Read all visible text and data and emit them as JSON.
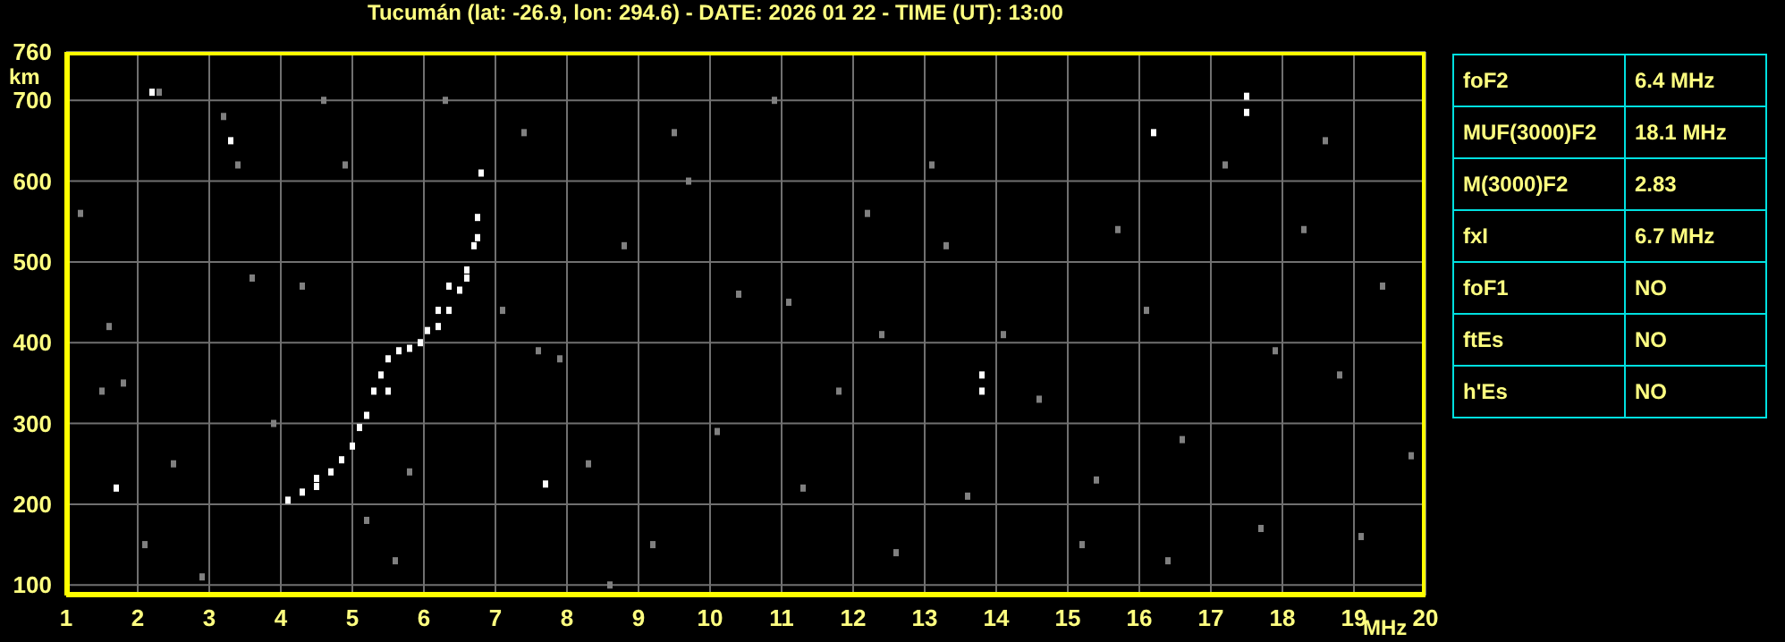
{
  "chart_data": [
    {
      "type": "scatter",
      "title": "Tucumán (lat: -26.9, lon: 294.6) - DATE: 2026 01 22 - TIME (UT): 13:00",
      "xlabel": "MHz",
      "ylabel": "km",
      "xlim": [
        1,
        20
      ],
      "xticks": [
        1,
        2,
        3,
        4,
        5,
        6,
        7,
        8,
        9,
        10,
        11,
        12,
        13,
        14,
        15,
        16,
        17,
        18,
        19,
        20
      ],
      "ylim": [
        87,
        760
      ],
      "yticks": [
        100,
        200,
        300,
        400,
        500,
        600,
        700,
        760
      ],
      "grid": true,
      "marker": "square",
      "series": [
        {
          "color": "#808080",
          "x": [
            1.2,
            1.6,
            1.8,
            2.1,
            2.5,
            2.9,
            3.2,
            3.6,
            3.9,
            4.3,
            4.9,
            5.2,
            5.8,
            6.3,
            7.1,
            7.4,
            7.9,
            8.3,
            8.8,
            9.2,
            9.7,
            10.1,
            10.4,
            10.9,
            11.3,
            11.8,
            12.2,
            12.6,
            13.1,
            13.6,
            14.1,
            14.6,
            15.2,
            15.7,
            16.1,
            16.6,
            17.2,
            17.7,
            18.3,
            18.8,
            19.4,
            19.8,
            2.3,
            3.4,
            5.6,
            7.6,
            9.5,
            11.1,
            13.3,
            15.4,
            17.9,
            19.1,
            1.5,
            4.6,
            8.6,
            12.4,
            16.4,
            18.6
          ],
          "values": [
            560,
            420,
            350,
            150,
            250,
            110,
            680,
            480,
            300,
            470,
            620,
            180,
            240,
            700,
            440,
            660,
            380,
            250,
            520,
            150,
            600,
            290,
            460,
            700,
            220,
            340,
            560,
            140,
            620,
            210,
            410,
            330,
            150,
            540,
            440,
            280,
            620,
            170,
            540,
            360,
            470,
            260,
            710,
            620,
            130,
            390,
            660,
            450,
            520,
            230,
            390,
            160,
            340,
            700,
            100,
            410,
            130,
            650
          ]
        },
        {
          "color": "#ffffff",
          "x": [
            4.1,
            4.3,
            4.5,
            4.7,
            4.85,
            5.0,
            5.1,
            5.2,
            5.3,
            5.4,
            5.5,
            5.65,
            5.8,
            5.95,
            6.05,
            6.2,
            6.35,
            6.5,
            6.6,
            6.7,
            6.75,
            4.5,
            5.5,
            6.2,
            6.35,
            6.6,
            6.75,
            6.8,
            13.8,
            13.8,
            17.5,
            17.5,
            16.2,
            3.3,
            1.7,
            2.2,
            7.7
          ],
          "values": [
            205,
            215,
            222,
            240,
            255,
            272,
            295,
            310,
            340,
            360,
            380,
            390,
            393,
            400,
            415,
            420,
            440,
            465,
            490,
            520,
            555,
            232,
            340,
            440,
            470,
            480,
            530,
            610,
            340,
            360,
            685,
            705,
            660,
            650,
            220,
            710,
            225
          ]
        }
      ]
    },
    {
      "type": "other",
      "annotations": [
        "foF2",
        "6.4 MHz",
        "MUF(3000)F2",
        "18.1 MHz",
        "M(3000)F2",
        "2.83",
        "fxI",
        "6.7 MHz",
        "foF1",
        "NO",
        "ftEs",
        "NO",
        "h'Es",
        "NO"
      ]
    }
  ]
}
